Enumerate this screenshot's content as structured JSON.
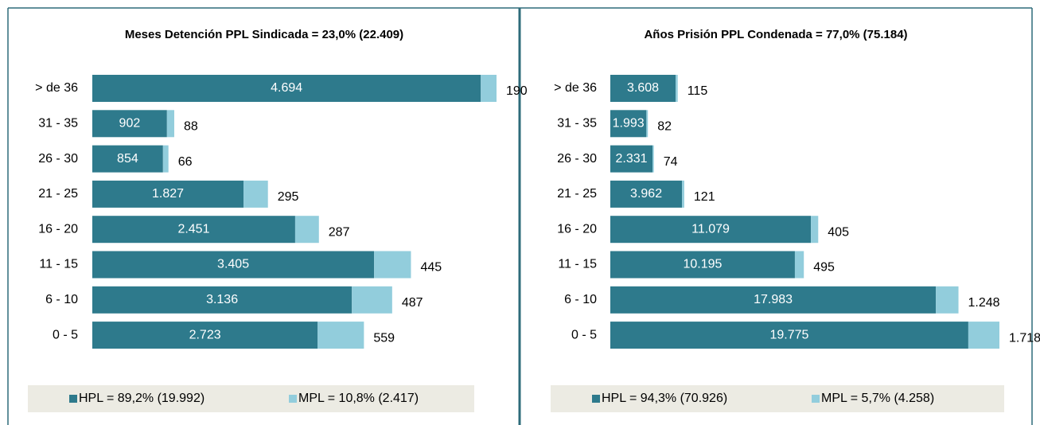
{
  "chart_data": [
    {
      "type": "bar",
      "stacked": true,
      "orientation": "horizontal",
      "title": "Meses Detención PPL Sindicada = 23,0% (22.409)",
      "categories": [
        "> de 36",
        "31 - 35",
        "26 - 30",
        "21 - 25",
        "16 - 20",
        "11 - 15",
        "6 - 10",
        "0 - 5"
      ],
      "series": [
        {
          "name": "HPL = 89,2% (19.992)",
          "color": "#2e7a8c",
          "values": [
            4694,
            902,
            854,
            1827,
            2451,
            3405,
            3136,
            2723
          ],
          "value_labels": [
            "4.694",
            "902",
            "854",
            "1.827",
            "2.451",
            "3.405",
            "3.136",
            "2.723"
          ]
        },
        {
          "name": "MPL = 10,8% (2.417)",
          "color": "#92cddc",
          "values": [
            190,
            88,
            66,
            295,
            287,
            445,
            487,
            559
          ]
        }
      ]
    },
    {
      "type": "bar",
      "stacked": true,
      "orientation": "horizontal",
      "title": "Años Prisión PPL Condenada = 77,0% (75.184)",
      "categories": [
        "> de 36",
        "31 - 35",
        "26 - 30",
        "21 - 25",
        "16 - 20",
        "11 - 15",
        "6 - 10",
        "0 - 5"
      ],
      "series": [
        {
          "name": "HPL = 94,3% (70.926)",
          "color": "#2e7a8c",
          "values": [
            3608,
            1993,
            2331,
            3962,
            11079,
            10195,
            17983,
            19775
          ],
          "value_labels": [
            "3.608",
            "1.993",
            "2.331",
            "3.962",
            "11.079",
            "10.195",
            "17.983",
            "19.775"
          ]
        },
        {
          "name": "MPL = 5,7% (4.258)",
          "color": "#92cddc",
          "values": [
            115,
            82,
            74,
            121,
            405,
            495,
            1248,
            1718
          ],
          "value_labels": [
            "115",
            "82",
            "74",
            "121",
            "405",
            "495",
            "1.248",
            "1.718"
          ]
        }
      ]
    }
  ]
}
